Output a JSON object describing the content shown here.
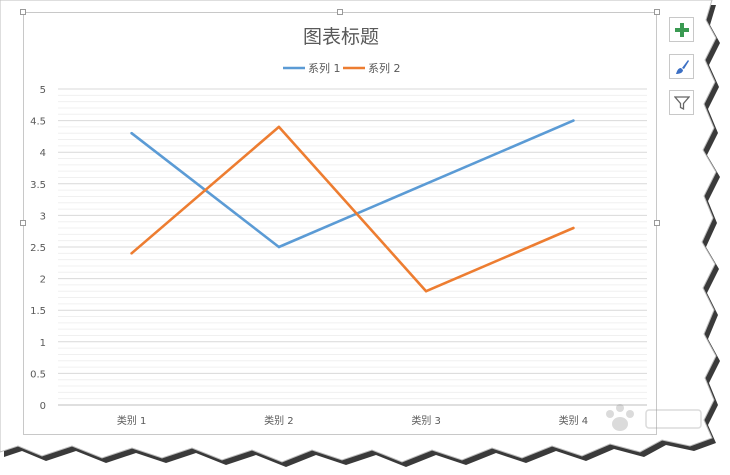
{
  "colors": {
    "series1": "#5b9bd5",
    "series2": "#ed7d31",
    "gridMajor": "#d9d9d9",
    "gridMinor": "#f0f0f0",
    "text": "#595959",
    "addButton": "#3a9a52",
    "brushButton": "#3b6fc4",
    "filterButton": "#666666"
  },
  "side_buttons": {
    "add_icon": "plus-icon",
    "style_icon": "paintbrush-icon",
    "filter_icon": "filter-icon"
  },
  "chart_data": {
    "type": "line",
    "title": "图表标题",
    "categories": [
      "类别 1",
      "类别 2",
      "类别 3",
      "类别 4"
    ],
    "series": [
      {
        "name": "系列 1",
        "values": [
          4.3,
          2.5,
          3.5,
          4.5
        ]
      },
      {
        "name": "系列 2",
        "values": [
          2.4,
          4.4,
          1.8,
          2.8
        ]
      }
    ],
    "yticks": [
      "0",
      "0.5",
      "1",
      "1.5",
      "2",
      "2.5",
      "3",
      "3.5",
      "4",
      "4.5",
      "5"
    ],
    "ylim": [
      0,
      5
    ],
    "ymajor": 0.5,
    "yminor": 0.1,
    "grid": true,
    "legend": "top"
  }
}
